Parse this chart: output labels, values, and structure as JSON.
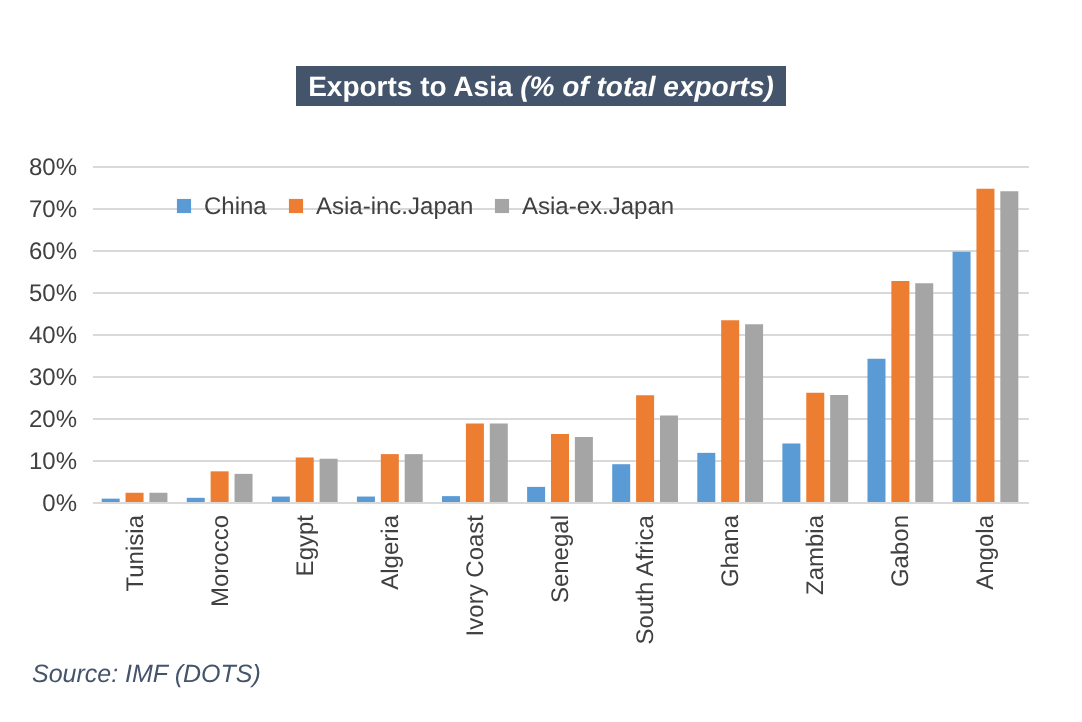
{
  "chart_data": {
    "type": "bar",
    "title": "Exports to Asia",
    "subtitle": "(% of total exports)",
    "categories": [
      "Tunisia",
      "Morocco",
      "Egypt",
      "Algeria",
      "Ivory Coast",
      "Senegal",
      "South Africa",
      "Ghana",
      "Zambia",
      "Gabon",
      "Angola"
    ],
    "series": [
      {
        "name": "China",
        "color": "#5b9bd5",
        "values": [
          0.8,
          1.0,
          1.3,
          1.3,
          1.4,
          3.6,
          9.0,
          11.7,
          13.9,
          34.1,
          59.6
        ]
      },
      {
        "name": "Asia-inc.Japan",
        "color": "#ed7d31",
        "values": [
          2.2,
          7.3,
          10.6,
          11.4,
          18.7,
          16.2,
          25.4,
          43.3,
          26.0,
          52.6,
          74.6
        ]
      },
      {
        "name": "Asia-ex.Japan",
        "color": "#a5a5a5",
        "values": [
          2.2,
          6.7,
          10.3,
          11.4,
          18.7,
          15.5,
          20.6,
          42.3,
          25.5,
          52.1,
          74.0
        ]
      }
    ],
    "ylim": [
      0,
      80
    ],
    "yticks": [
      {
        "value": 0,
        "label": "0%"
      },
      {
        "value": 10,
        "label": "10%"
      },
      {
        "value": 20,
        "label": "20%"
      },
      {
        "value": 30,
        "label": "30%"
      },
      {
        "value": 40,
        "label": "40%"
      },
      {
        "value": 50,
        "label": "50%"
      },
      {
        "value": 60,
        "label": "60%"
      },
      {
        "value": 70,
        "label": "70%"
      },
      {
        "value": 80,
        "label": "80%"
      }
    ],
    "grid": "y",
    "legend": "top left",
    "annotations": [
      "Source: IMF (DOTS)"
    ]
  }
}
